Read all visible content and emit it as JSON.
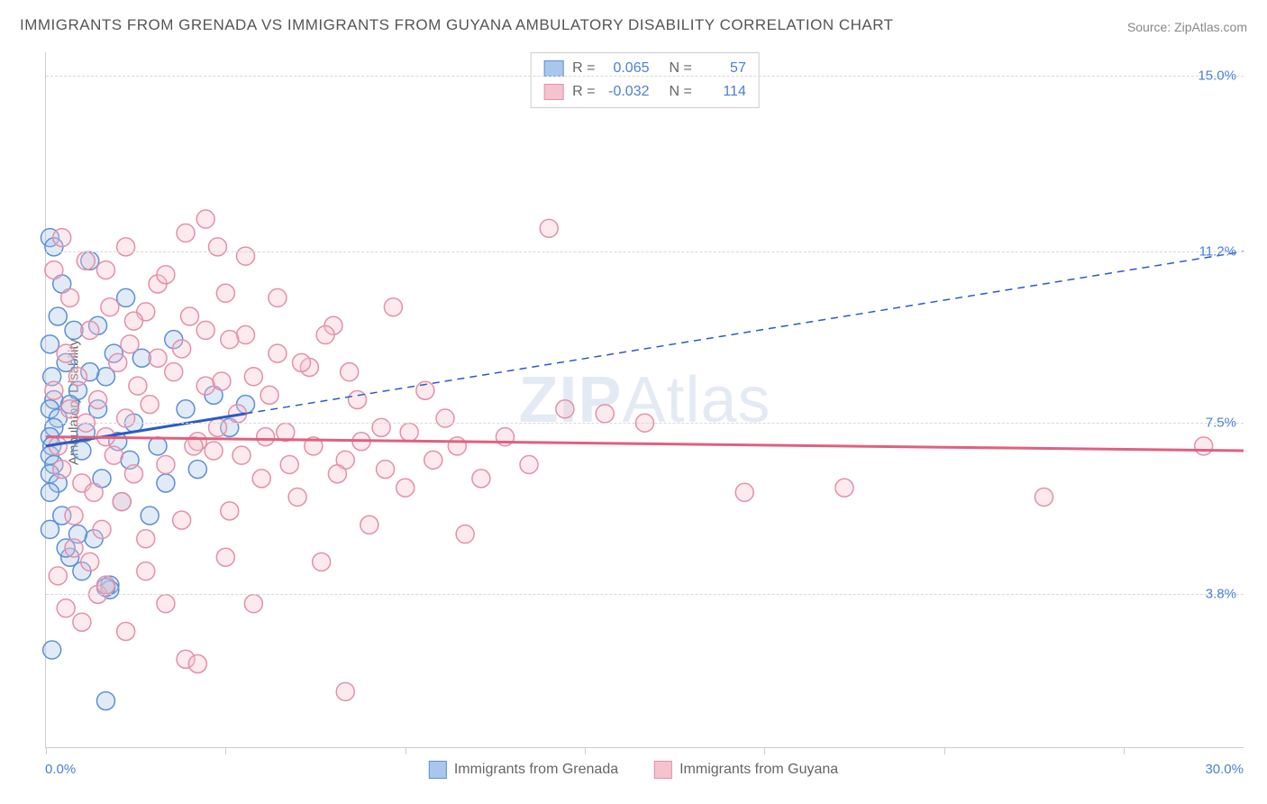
{
  "title": "IMMIGRANTS FROM GRENADA VS IMMIGRANTS FROM GUYANA AMBULATORY DISABILITY CORRELATION CHART",
  "source_label": "Source: ",
  "source_name": "ZipAtlas.com",
  "y_axis_label": "Ambulatory Disability",
  "watermark_prefix": "ZIP",
  "watermark_suffix": "Atlas",
  "chart": {
    "type": "scatter",
    "x_min": 0.0,
    "x_max": 30.0,
    "x_min_label": "0.0%",
    "x_max_label": "30.0%",
    "x_tick_positions": [
      0,
      4.5,
      9.0,
      13.5,
      18.0,
      22.5,
      27.0
    ],
    "y_gridlines": [
      {
        "value": 3.8,
        "label": "3.8%"
      },
      {
        "value": 7.5,
        "label": "7.5%"
      },
      {
        "value": 11.2,
        "label": "11.2%"
      },
      {
        "value": 15.0,
        "label": "15.0%"
      }
    ],
    "y_plot_min": 0.5,
    "y_plot_max": 15.5,
    "background_color": "#ffffff",
    "grid_color": "#d8d8d8",
    "axis_color": "#cccccc",
    "label_color": "#4a7fd6",
    "marker_radius": 10,
    "marker_opacity": 0.35
  },
  "series": [
    {
      "key": "grenada",
      "label": "Immigrants from Grenada",
      "color_fill": "#a9c6ec",
      "color_stroke": "#5c8fd6",
      "trend_color": "#2a5bc5",
      "trend_dashed_after_x": 5.0,
      "R_label": "R =",
      "R_value": "0.065",
      "N_label": "N =",
      "N_value": "57",
      "trend": {
        "x1": 0.0,
        "y1": 7.0,
        "x2": 30.0,
        "y2": 11.2
      },
      "points": [
        [
          0.1,
          11.5
        ],
        [
          0.2,
          11.3
        ],
        [
          0.1,
          9.2
        ],
        [
          0.15,
          8.5
        ],
        [
          0.2,
          8.0
        ],
        [
          0.1,
          7.8
        ],
        [
          0.3,
          7.6
        ],
        [
          0.2,
          7.4
        ],
        [
          0.1,
          7.2
        ],
        [
          0.15,
          7.0
        ],
        [
          0.1,
          6.8
        ],
        [
          0.2,
          6.6
        ],
        [
          0.1,
          6.4
        ],
        [
          0.3,
          6.2
        ],
        [
          0.1,
          6.0
        ],
        [
          0.4,
          5.5
        ],
        [
          0.1,
          5.2
        ],
        [
          0.5,
          8.8
        ],
        [
          0.6,
          4.6
        ],
        [
          0.7,
          9.5
        ],
        [
          0.8,
          8.2
        ],
        [
          0.9,
          6.9
        ],
        [
          1.0,
          7.3
        ],
        [
          1.1,
          11.0
        ],
        [
          1.2,
          5.0
        ],
        [
          1.3,
          7.8
        ],
        [
          1.4,
          6.3
        ],
        [
          1.5,
          8.5
        ],
        [
          1.6,
          4.0
        ],
        [
          1.7,
          9.0
        ],
        [
          1.8,
          7.1
        ],
        [
          1.6,
          3.9
        ],
        [
          1.9,
          5.8
        ],
        [
          2.0,
          10.2
        ],
        [
          2.1,
          6.7
        ],
        [
          2.2,
          7.5
        ],
        [
          2.4,
          8.9
        ],
        [
          2.6,
          5.5
        ],
        [
          2.8,
          7.0
        ],
        [
          3.0,
          6.2
        ],
        [
          3.2,
          9.3
        ],
        [
          3.5,
          7.8
        ],
        [
          3.8,
          6.5
        ],
        [
          4.2,
          8.1
        ],
        [
          4.6,
          7.4
        ],
        [
          5.0,
          7.9
        ],
        [
          0.3,
          9.8
        ],
        [
          0.4,
          10.5
        ],
        [
          0.5,
          4.8
        ],
        [
          0.6,
          7.9
        ],
        [
          0.15,
          2.6
        ],
        [
          1.5,
          1.5
        ],
        [
          1.5,
          3.95
        ],
        [
          0.8,
          5.1
        ],
        [
          0.9,
          4.3
        ],
        [
          1.1,
          8.6
        ],
        [
          1.3,
          9.6
        ]
      ]
    },
    {
      "key": "guyana",
      "label": "Immigrants from Guyana",
      "color_fill": "#f5c2cf",
      "color_stroke": "#e390a8",
      "trend_color": "#e0607f",
      "trend_dashed_after_x": null,
      "R_label": "R =",
      "R_value": "-0.032",
      "N_label": "N =",
      "N_value": "114",
      "trend": {
        "x1": 0.0,
        "y1": 7.2,
        "x2": 30.0,
        "y2": 6.9
      },
      "points": [
        [
          0.2,
          8.2
        ],
        [
          0.3,
          7.0
        ],
        [
          0.4,
          6.5
        ],
        [
          0.5,
          9.0
        ],
        [
          0.6,
          7.8
        ],
        [
          0.7,
          5.5
        ],
        [
          0.8,
          8.5
        ],
        [
          0.9,
          6.2
        ],
        [
          1.0,
          7.5
        ],
        [
          1.1,
          9.5
        ],
        [
          1.2,
          6.0
        ],
        [
          1.3,
          8.0
        ],
        [
          1.4,
          5.2
        ],
        [
          1.5,
          7.2
        ],
        [
          1.6,
          10.0
        ],
        [
          1.7,
          6.8
        ],
        [
          1.8,
          8.8
        ],
        [
          1.9,
          5.8
        ],
        [
          2.0,
          7.6
        ],
        [
          2.1,
          9.2
        ],
        [
          2.2,
          6.4
        ],
        [
          2.3,
          8.3
        ],
        [
          2.5,
          5.0
        ],
        [
          2.6,
          7.9
        ],
        [
          2.8,
          10.5
        ],
        [
          3.0,
          6.6
        ],
        [
          3.2,
          8.6
        ],
        [
          3.4,
          5.4
        ],
        [
          3.6,
          9.8
        ],
        [
          3.8,
          7.1
        ],
        [
          4.0,
          11.9
        ],
        [
          4.2,
          6.9
        ],
        [
          4.4,
          8.4
        ],
        [
          4.6,
          5.6
        ],
        [
          4.8,
          7.7
        ],
        [
          5.0,
          9.4
        ],
        [
          5.2,
          3.6
        ],
        [
          5.4,
          6.3
        ],
        [
          5.6,
          8.1
        ],
        [
          5.8,
          10.2
        ],
        [
          6.0,
          7.3
        ],
        [
          6.3,
          5.9
        ],
        [
          6.6,
          8.7
        ],
        [
          6.9,
          4.5
        ],
        [
          7.2,
          9.6
        ],
        [
          7.5,
          6.7
        ],
        [
          7.8,
          8.0
        ],
        [
          8.1,
          5.3
        ],
        [
          8.4,
          7.4
        ],
        [
          8.7,
          10.0
        ],
        [
          9.0,
          6.1
        ],
        [
          9.5,
          8.2
        ],
        [
          10.0,
          7.6
        ],
        [
          10.5,
          5.1
        ],
        [
          12.6,
          11.7
        ],
        [
          13.0,
          7.8
        ],
        [
          14.0,
          7.7
        ],
        [
          15.0,
          7.5
        ],
        [
          17.5,
          6.0
        ],
        [
          20.0,
          6.1
        ],
        [
          25.0,
          5.9
        ],
        [
          29.0,
          7.0
        ],
        [
          0.3,
          4.2
        ],
        [
          0.5,
          3.5
        ],
        [
          0.7,
          4.8
        ],
        [
          0.9,
          3.2
        ],
        [
          1.1,
          4.5
        ],
        [
          1.3,
          3.8
        ],
        [
          1.5,
          4.0
        ],
        [
          2.0,
          3.0
        ],
        [
          2.5,
          4.3
        ],
        [
          3.0,
          3.6
        ],
        [
          3.5,
          2.4
        ],
        [
          3.8,
          2.3
        ],
        [
          7.5,
          1.7
        ],
        [
          4.5,
          4.6
        ],
        [
          0.2,
          10.8
        ],
        [
          0.4,
          11.5
        ],
        [
          0.6,
          10.2
        ],
        [
          1.0,
          11.0
        ],
        [
          1.5,
          10.8
        ],
        [
          2.0,
          11.3
        ],
        [
          2.5,
          9.9
        ],
        [
          3.0,
          10.7
        ],
        [
          3.5,
          11.6
        ],
        [
          4.0,
          9.5
        ],
        [
          4.5,
          10.3
        ],
        [
          5.0,
          11.1
        ],
        [
          2.2,
          9.7
        ],
        [
          2.8,
          8.9
        ],
        [
          3.4,
          9.1
        ],
        [
          4.0,
          8.3
        ],
        [
          4.6,
          9.3
        ],
        [
          5.2,
          8.5
        ],
        [
          5.8,
          9.0
        ],
        [
          6.4,
          8.8
        ],
        [
          7.0,
          9.4
        ],
        [
          7.6,
          8.6
        ],
        [
          3.7,
          7.0
        ],
        [
          4.3,
          7.4
        ],
        [
          4.9,
          6.8
        ],
        [
          5.5,
          7.2
        ],
        [
          6.1,
          6.6
        ],
        [
          6.7,
          7.0
        ],
        [
          7.3,
          6.4
        ],
        [
          7.9,
          7.1
        ],
        [
          8.5,
          6.5
        ],
        [
          9.1,
          7.3
        ],
        [
          9.7,
          6.7
        ],
        [
          10.3,
          7.0
        ],
        [
          10.9,
          6.3
        ],
        [
          11.5,
          7.2
        ],
        [
          12.1,
          6.6
        ],
        [
          4.3,
          11.3
        ]
      ]
    }
  ]
}
